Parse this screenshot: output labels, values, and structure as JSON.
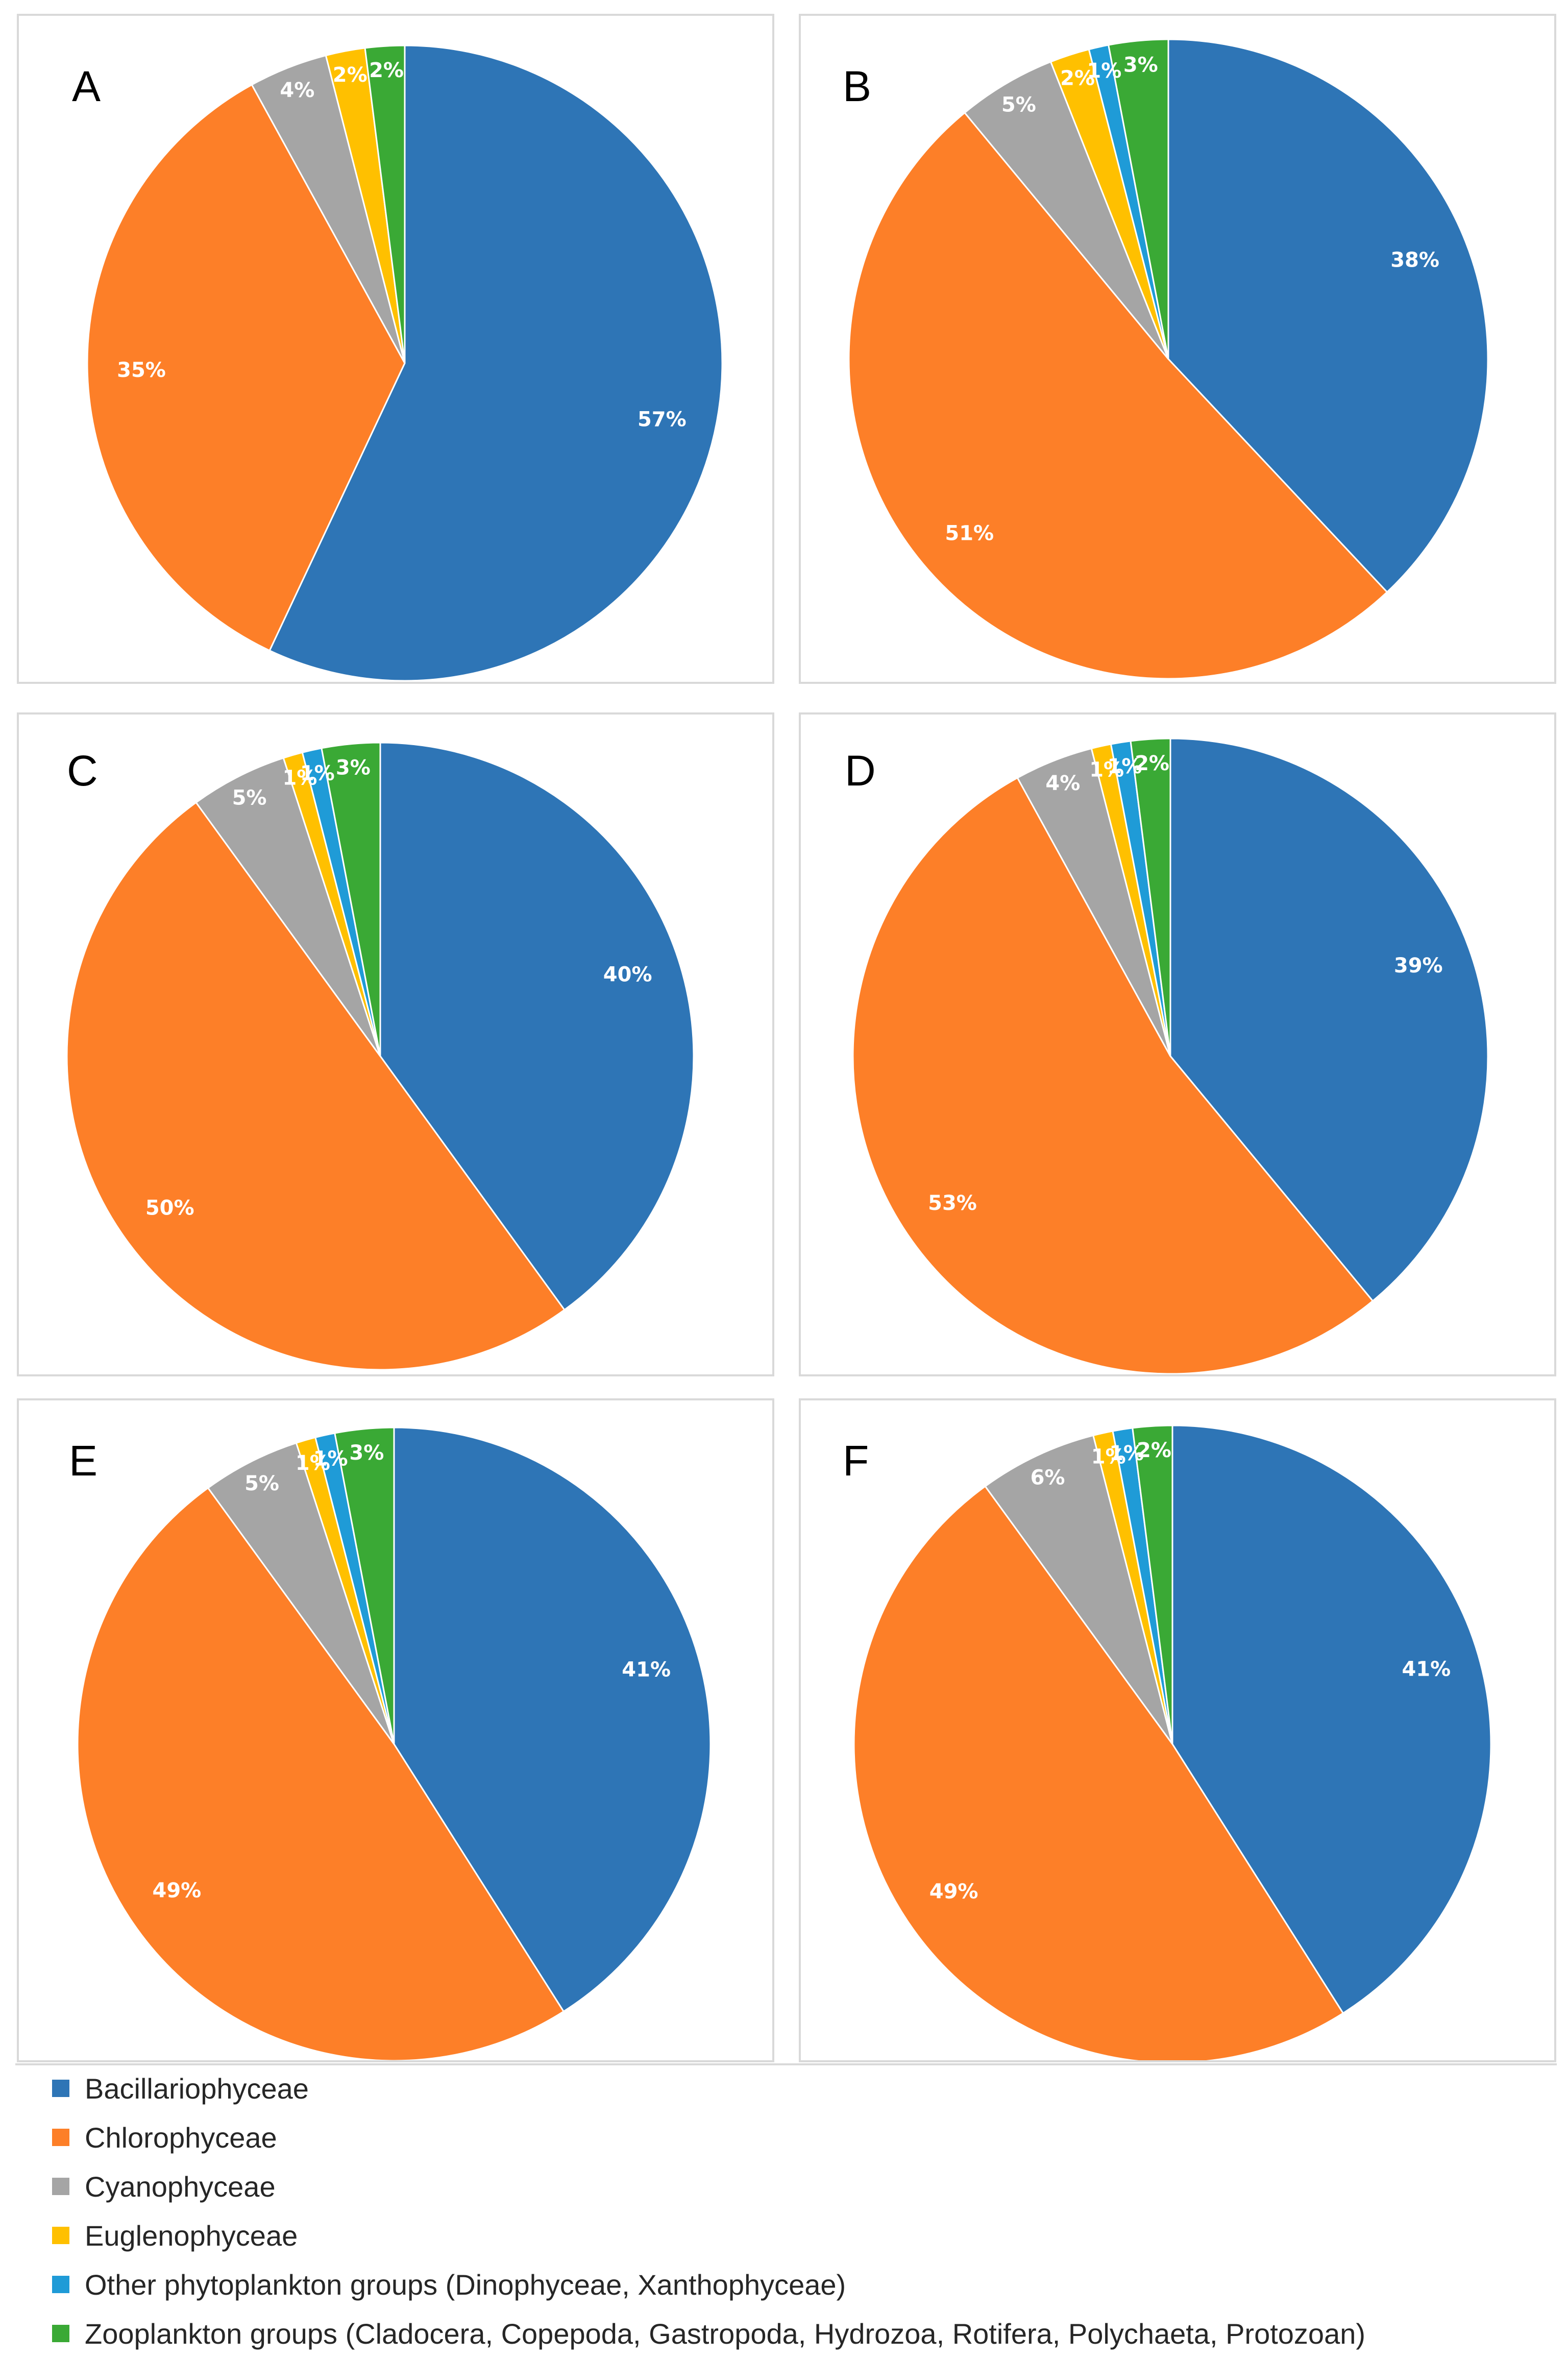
{
  "colors": {
    "Bacillariophyceae": "#2e75b6",
    "Chlorophyceae": "#fd7f28",
    "Cyanophyceae": "#a5a5a5",
    "Euglenophyceae": "#ffc000",
    "Other": "#1f9bd7",
    "Zooplankton": "#3aa935"
  },
  "legend": [
    {
      "key": "Bacillariophyceae",
      "label": "Bacillariophyceae"
    },
    {
      "key": "Chlorophyceae",
      "label": "Chlorophyceae"
    },
    {
      "key": "Cyanophyceae",
      "label": "Cyanophyceae"
    },
    {
      "key": "Euglenophyceae",
      "label": "Euglenophyceae"
    },
    {
      "key": "Other",
      "label": "Other phytoplankton groups (Dinophyceae, Xanthophyceae)"
    },
    {
      "key": "Zooplankton",
      "label": "Zooplankton groups (Cladocera, Copepoda, Gastropoda, Hydrozoa, Rotifera, Polychaeta, Protozoan)"
    }
  ],
  "chart_data": [
    {
      "type": "pie",
      "panel": "A",
      "categories": [
        "Bacillariophyceae",
        "Chlorophyceae",
        "Cyanophyceae",
        "Euglenophyceae",
        "Zooplankton"
      ],
      "values": [
        57,
        35,
        4,
        2,
        2
      ],
      "labels": [
        "57%",
        "35%",
        "4%",
        "2%",
        "2%"
      ]
    },
    {
      "type": "pie",
      "panel": "B",
      "categories": [
        "Bacillariophyceae",
        "Chlorophyceae",
        "Cyanophyceae",
        "Euglenophyceae",
        "Other",
        "Zooplankton"
      ],
      "values": [
        38,
        51,
        5,
        2,
        1,
        3
      ],
      "labels": [
        "38%",
        "51%",
        "5%",
        "2%",
        "1%",
        "3%"
      ]
    },
    {
      "type": "pie",
      "panel": "C",
      "categories": [
        "Bacillariophyceae",
        "Chlorophyceae",
        "Cyanophyceae",
        "Euglenophyceae",
        "Other",
        "Zooplankton"
      ],
      "values": [
        40,
        50,
        5,
        1,
        1,
        3
      ],
      "labels": [
        "40%",
        "50%",
        "5%",
        "1%",
        "1%",
        "3%"
      ]
    },
    {
      "type": "pie",
      "panel": "D",
      "categories": [
        "Bacillariophyceae",
        "Chlorophyceae",
        "Cyanophyceae",
        "Euglenophyceae",
        "Other",
        "Zooplankton"
      ],
      "values": [
        39,
        53,
        4,
        1,
        1,
        2
      ],
      "labels": [
        "39%",
        "53%",
        "4%",
        "1%",
        "1%",
        "2%"
      ]
    },
    {
      "type": "pie",
      "panel": "E",
      "categories": [
        "Bacillariophyceae",
        "Chlorophyceae",
        "Cyanophyceae",
        "Euglenophyceae",
        "Other",
        "Zooplankton"
      ],
      "values": [
        41,
        49,
        5,
        1,
        1,
        3
      ],
      "labels": [
        "41%",
        "49%",
        "5%",
        "1%",
        "1%",
        "3%"
      ]
    },
    {
      "type": "pie",
      "panel": "F",
      "categories": [
        "Bacillariophyceae",
        "Chlorophyceae",
        "Cyanophyceae",
        "Euglenophyceae",
        "Other",
        "Zooplankton"
      ],
      "values": [
        41,
        49,
        6,
        1,
        1,
        2
      ],
      "labels": [
        "41%",
        "49%",
        "6%",
        "1%",
        "1%",
        "2%"
      ]
    }
  ]
}
